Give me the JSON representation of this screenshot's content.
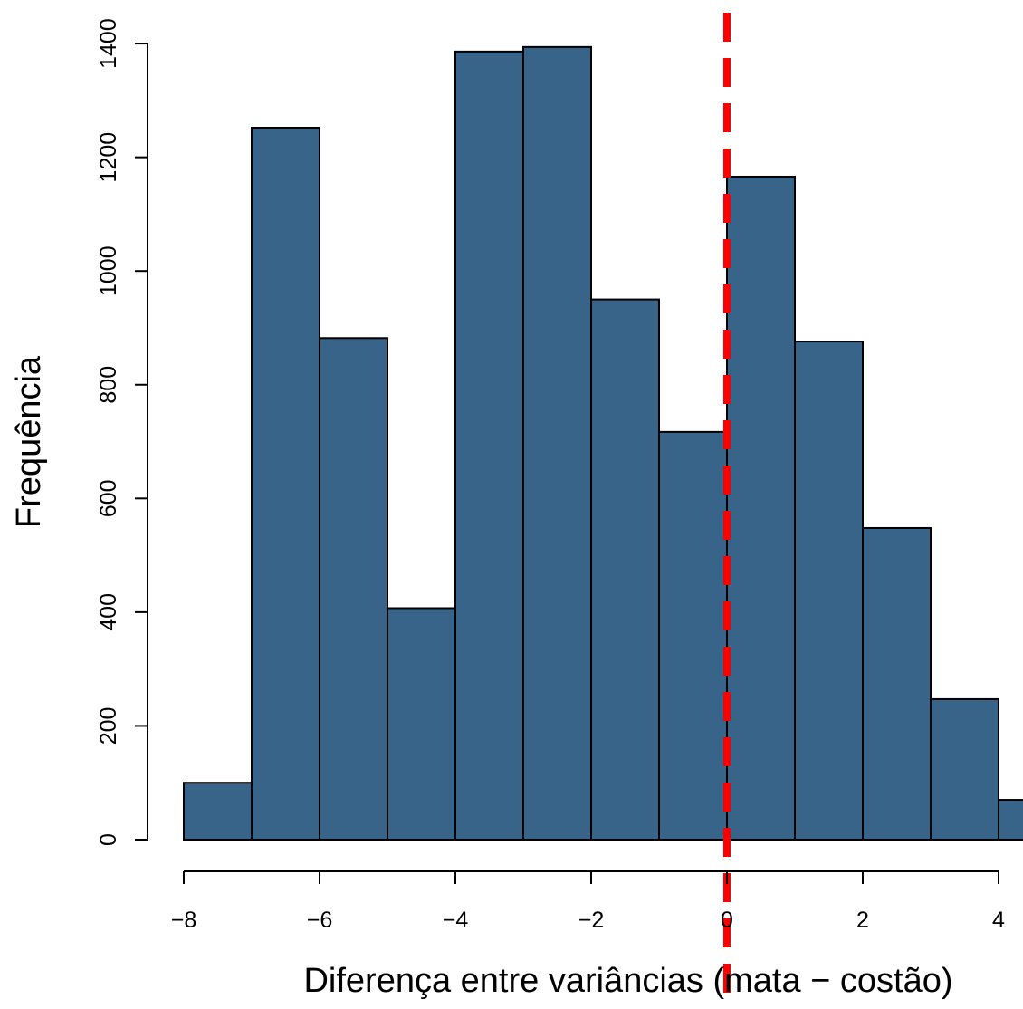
{
  "chart_data": {
    "type": "bar",
    "bins": [
      {
        "start": -8,
        "end": -7,
        "count": 100
      },
      {
        "start": -7,
        "end": -6,
        "count": 1252
      },
      {
        "start": -6,
        "end": -5,
        "count": 882
      },
      {
        "start": -5,
        "end": -4,
        "count": 407
      },
      {
        "start": -4,
        "end": -3,
        "count": 1386
      },
      {
        "start": -3,
        "end": -2,
        "count": 1394
      },
      {
        "start": -2,
        "end": -1,
        "count": 950
      },
      {
        "start": -1,
        "end": 0,
        "count": 717
      },
      {
        "start": 0,
        "end": 1,
        "count": 1166
      },
      {
        "start": 1,
        "end": 2,
        "count": 876
      },
      {
        "start": 2,
        "end": 3,
        "count": 548
      },
      {
        "start": 3,
        "end": 4,
        "count": 247
      },
      {
        "start": 4,
        "end": 5,
        "count": 70
      }
    ],
    "xlabel": "Diferença entre variâncias (mata − costão)",
    "ylabel": "Frequência",
    "xlim": [
      -8,
      4
    ],
    "ylim": [
      0,
      1400
    ],
    "xticks": [
      "−8",
      "−6",
      "−4",
      "−2",
      "0",
      "2",
      "4"
    ],
    "yticks": [
      "0",
      "200",
      "400",
      "600",
      "800",
      "1000",
      "1200",
      "1400"
    ],
    "reference_line": {
      "x": 0,
      "color": "#ff0000",
      "style": "dashed"
    },
    "bar_color": "#386489",
    "grid": false
  }
}
